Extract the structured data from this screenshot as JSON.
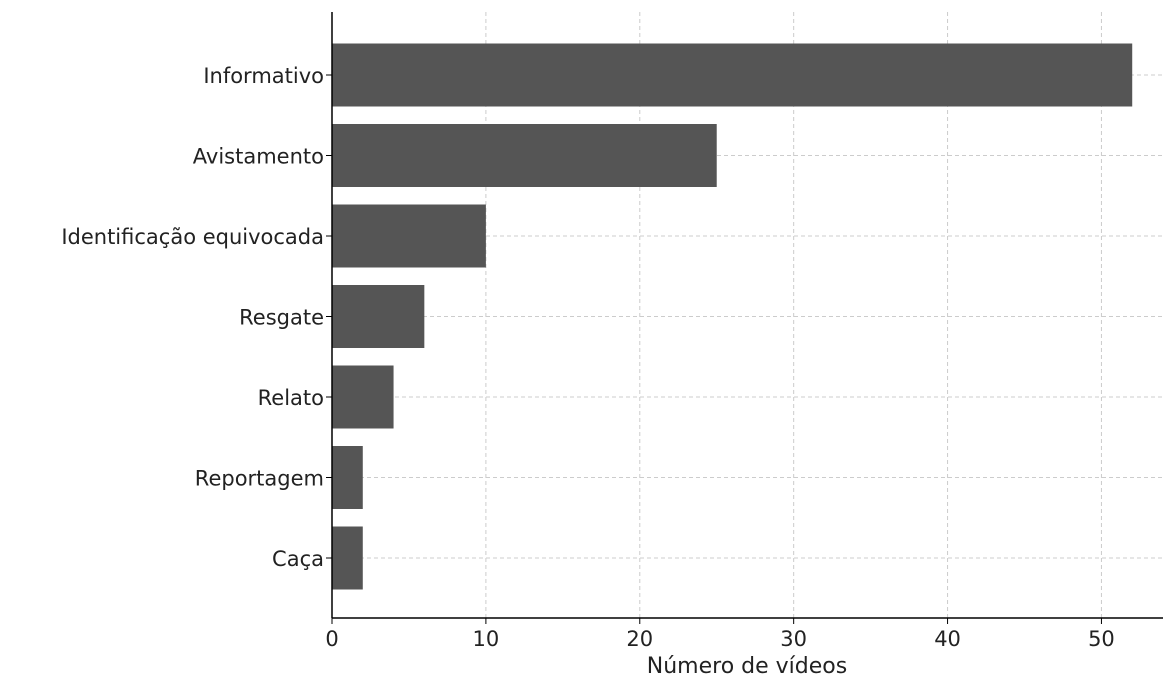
{
  "chart_data": {
    "type": "bar",
    "orientation": "horizontal",
    "title": "",
    "xlabel": "Número de vídeos",
    "ylabel": "",
    "categories": [
      "Informativo",
      "Avistamento",
      "Identificação equivocada",
      "Resgate",
      "Relato",
      "Reportagem",
      "Caça"
    ],
    "values": [
      52,
      25,
      10,
      6,
      4,
      2,
      2
    ],
    "xlim": [
      0,
      54
    ],
    "xticks": [
      0,
      10,
      20,
      30,
      40,
      50
    ],
    "grid": true,
    "legend": "none",
    "colors": {
      "bar": "#555555",
      "grid": "#cccccc",
      "axis": "#000000",
      "text": "#222222"
    }
  }
}
